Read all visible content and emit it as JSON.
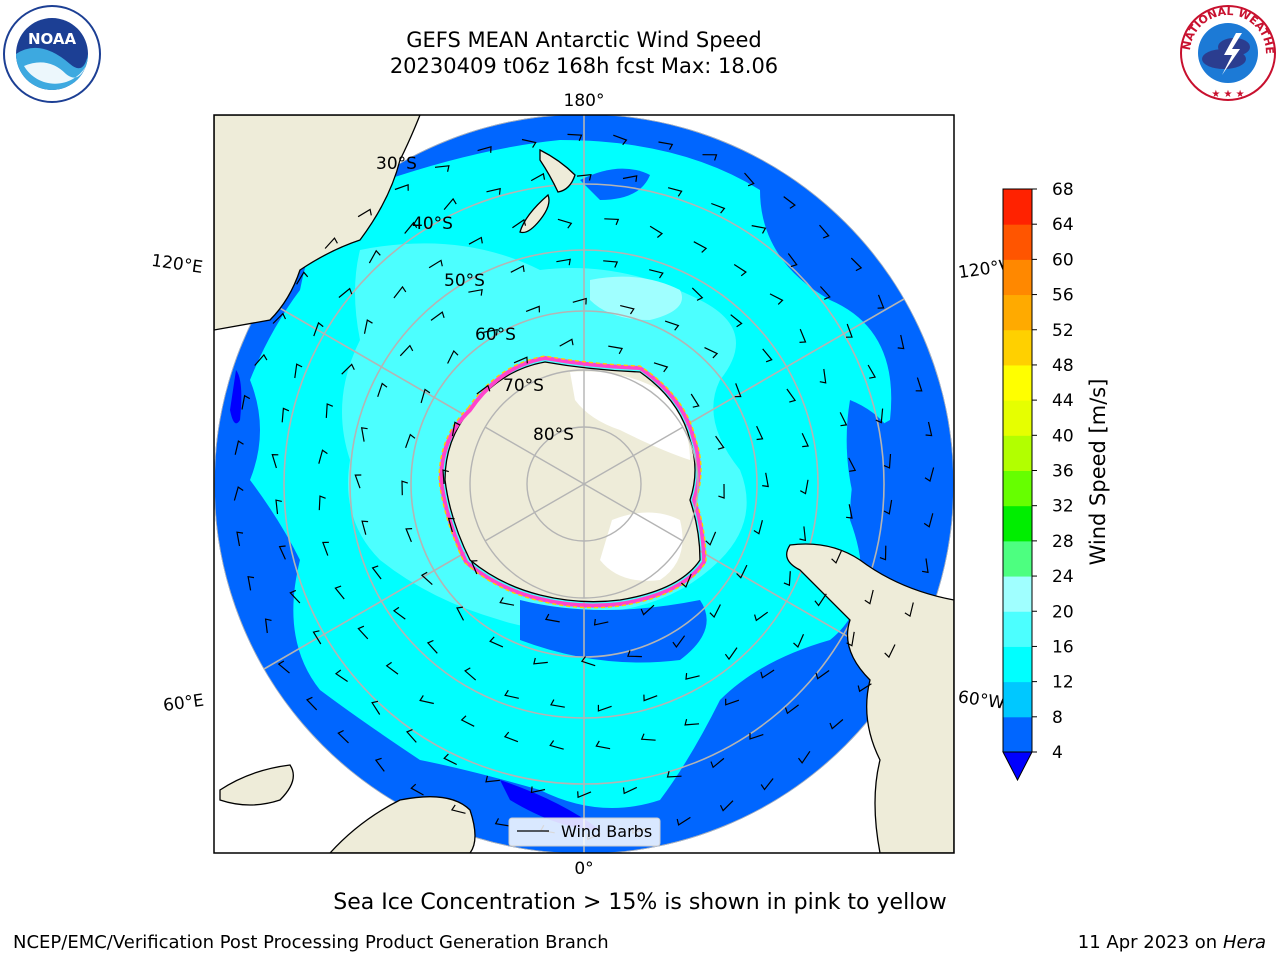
{
  "title": {
    "line1": "GEFS MEAN Antarctic Wind Speed",
    "line2": "20230409 t06z 168h fcst   Max: 18.06"
  },
  "map": {
    "projection": "south-polar-stereographic",
    "latitude_labels": [
      "30°S",
      "40°S",
      "50°S",
      "60°S",
      "70°S",
      "80°S"
    ],
    "longitude_labels": {
      "top": "180°",
      "bottom": "0°",
      "upper_left": "120°E",
      "upper_right": "120°W",
      "lower_left": "60°E",
      "lower_right": "60°W"
    },
    "legend_label": "Wind Barbs"
  },
  "colorbar": {
    "label": "Wind Speed [m/s]",
    "ticks": [
      "4",
      "8",
      "12",
      "16",
      "20",
      "24",
      "28",
      "32",
      "36",
      "40",
      "44",
      "48",
      "52",
      "56",
      "60",
      "64",
      "68"
    ],
    "colors": [
      "#0066ff",
      "#00c8ff",
      "#00ffff",
      "#4cffff",
      "#a0ffff",
      "#4dff80",
      "#00ee00",
      "#66ff00",
      "#b2ff00",
      "#e6ff00",
      "#ffff00",
      "#ffd000",
      "#ffaa00",
      "#ff8800",
      "#ff5500",
      "#ff2200"
    ],
    "extend_min_color": "#0000ff",
    "land_color": "#eeecd9",
    "ice_edge_colors": [
      "#ff44cc",
      "#ffcc00"
    ]
  },
  "sea_ice_note": "Sea Ice Concentration > 15% is shown in pink to yellow",
  "footer": {
    "left": "NCEP/EMC/Verification Post Processing Product Generation Branch",
    "right_date": "11 Apr 2023 on",
    "right_machine": "Hera"
  },
  "logos": {
    "left": "NOAA",
    "right": "NATIONAL WEATHER SERVICE"
  }
}
